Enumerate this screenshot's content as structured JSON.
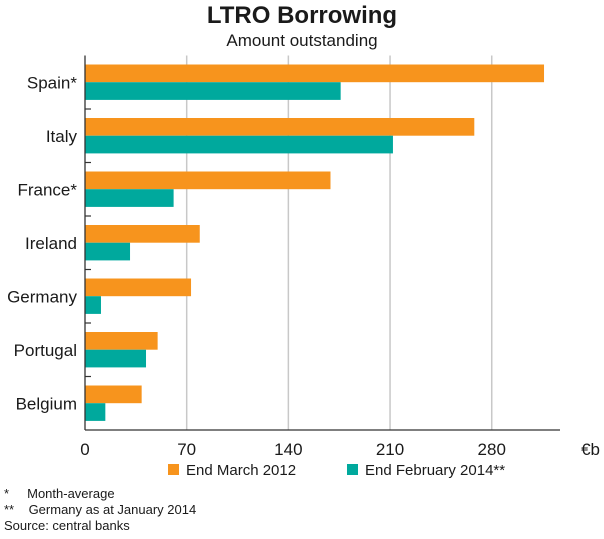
{
  "chart_data": {
    "type": "bar",
    "orientation": "horizontal",
    "title": "LTRO Borrowing",
    "subtitle": "Amount outstanding",
    "unit_label": "€b",
    "categories": [
      "Spain*",
      "Italy",
      "France*",
      "Ireland",
      "Germany",
      "Portugal",
      "Belgium"
    ],
    "series": [
      {
        "name": "End March 2012",
        "color": "#f7941d",
        "values": [
          316,
          268,
          169,
          79,
          73,
          50,
          39
        ]
      },
      {
        "name": "End February 2014**",
        "color": "#00a99d",
        "values": [
          176,
          212,
          61,
          31,
          11,
          42,
          14
        ]
      }
    ],
    "xticks": [
      0,
      70,
      140,
      210,
      280
    ],
    "xlim": [
      0,
      327
    ],
    "grid": true,
    "legend_position": "bottom"
  },
  "notes": [
    "*     Month-average",
    "**    Germany as at January 2014",
    "Source: central banks"
  ]
}
